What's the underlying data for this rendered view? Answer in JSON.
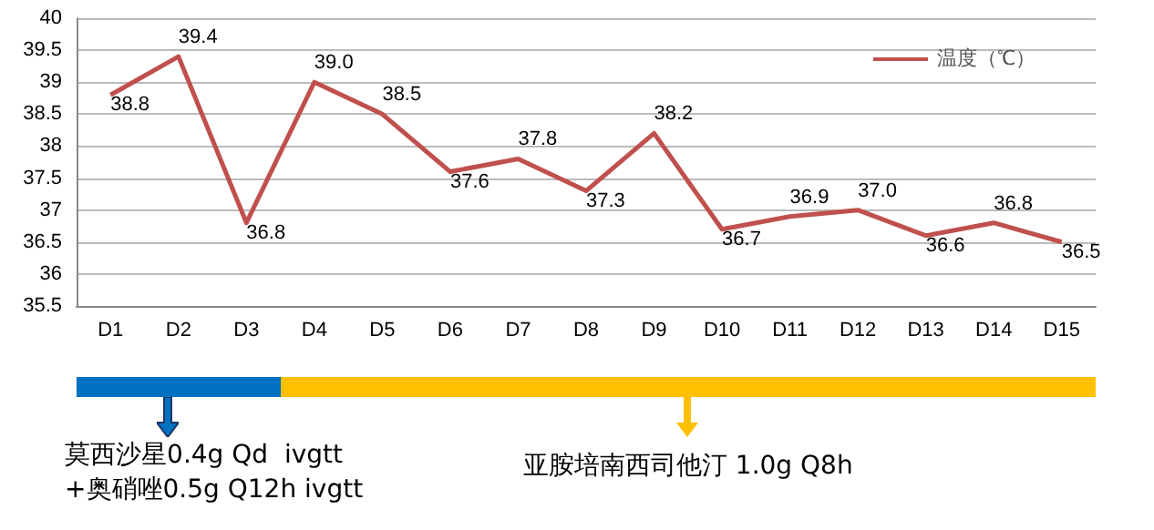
{
  "chart_data": {
    "type": "line",
    "categories": [
      "D1",
      "D2",
      "D3",
      "D4",
      "D5",
      "D6",
      "D7",
      "D8",
      "D9",
      "D10",
      "D11",
      "D12",
      "D13",
      "D14",
      "D15"
    ],
    "series": [
      {
        "name": "温度（℃）",
        "color": "#c0504d",
        "values": [
          38.8,
          39.4,
          36.8,
          39.0,
          38.5,
          37.6,
          37.8,
          37.3,
          38.2,
          36.7,
          36.9,
          37.0,
          36.6,
          36.8,
          36.5
        ],
        "value_labels": [
          "38.8",
          "39.4",
          "36.8",
          "39.0",
          "38.5",
          "37.6",
          "37.8",
          "37.3",
          "38.2",
          "36.7",
          "36.9",
          "37.0",
          "36.6",
          "36.8",
          "36.5"
        ]
      }
    ],
    "ylim": [
      35.5,
      40
    ],
    "yticks": [
      35.5,
      36,
      36.5,
      37,
      37.5,
      38,
      38.5,
      39,
      39.5,
      40
    ],
    "grid": "y",
    "legend": "top right",
    "marker": "none",
    "annotations": [
      "莫西沙星0.4g Qd  ivgtt\n+奥硝唑0.5g Q12h ivgtt",
      "亚胺培南西司他汀 1.0g Q8h"
    ]
  }
}
